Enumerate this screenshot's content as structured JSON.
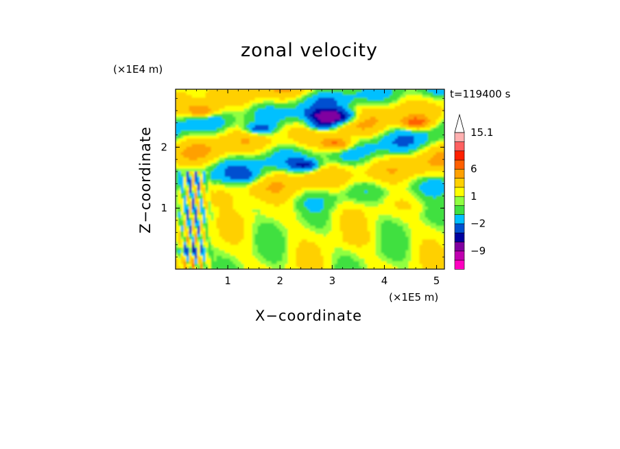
{
  "chart_data": {
    "type": "heatmap",
    "title": "zonal velocity",
    "xlabel": "X−coordinate",
    "ylabel": "Z−coordinate",
    "x_scale_label": "(×1E5 m)",
    "y_scale_label": "(×1E4 m)",
    "time_label": "t=119400 s",
    "xlim": [
      0,
      5.15
    ],
    "ylim": [
      0,
      2.95
    ],
    "x_ticks": [
      1,
      2,
      3,
      4,
      5
    ],
    "y_ticks": [
      1,
      2
    ],
    "colorbar": {
      "levels_colors": [
        "#ff00c0",
        "#c000b0",
        "#8000a0",
        "#0000a0",
        "#0050d0",
        "#00c0ff",
        "#40e040",
        "#90ff40",
        "#ffff00",
        "#ffd000",
        "#ffa000",
        "#ff6000",
        "#ff2000",
        "#ff6060",
        "#ffb0b0"
      ],
      "tick_labels": [
        "15.1",
        "6",
        "1",
        "−2",
        "−9"
      ],
      "tick_values": [
        15.1,
        6,
        1,
        -2,
        -9
      ]
    },
    "field_description_values": {
      "features": [
        {
          "x": 3.0,
          "z": 2.5,
          "value": -9
        },
        {
          "x": 2.8,
          "z": 2.35,
          "value": -5
        },
        {
          "x": 1.6,
          "z": 2.3,
          "value": -5
        },
        {
          "x": 2.5,
          "z": 1.7,
          "value": -5
        },
        {
          "x": 0.3,
          "z": 0.3,
          "value": -5
        },
        {
          "x": 0.5,
          "z": 2.6,
          "value": 6
        },
        {
          "x": 4.6,
          "z": 2.4,
          "value": 6
        },
        {
          "x": 3.1,
          "z": 2.05,
          "value": 6
        },
        {
          "x": 1.4,
          "z": 1.5,
          "value": -2
        },
        {
          "x": 3.5,
          "z": 0.5,
          "value": 1
        }
      ]
    }
  }
}
